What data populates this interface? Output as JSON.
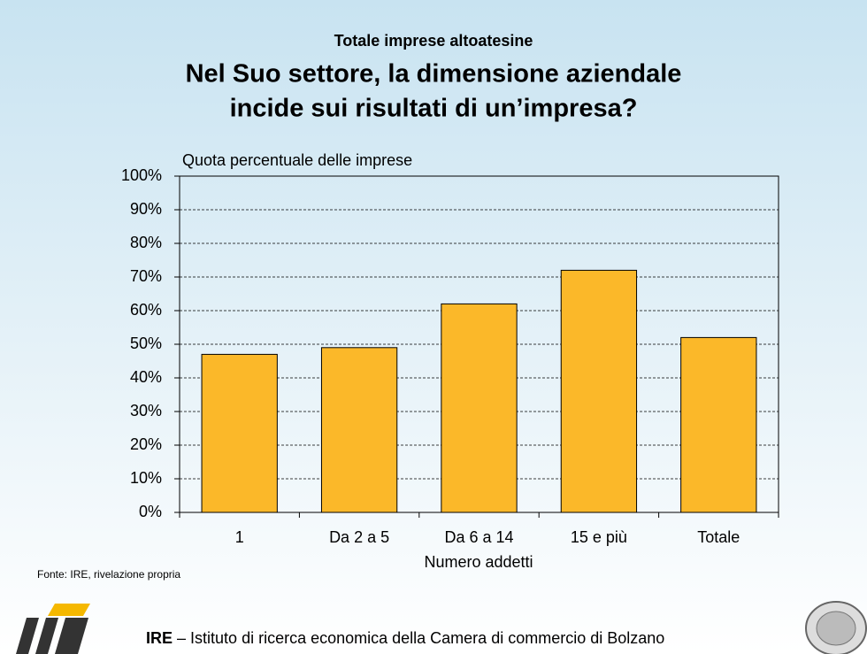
{
  "chart_data": {
    "type": "bar",
    "subtitle": "Totale imprese altoatesine",
    "title": [
      "Nel Suo settore, la dimensione aziendale",
      "incide sui risultati di un’impresa?"
    ],
    "y_label": "Quota percentuale delle imprese",
    "x_label": "Numero addetti",
    "categories": [
      "1",
      "Da 2 a 5",
      "Da 6 a 14",
      "15 e più",
      "Totale"
    ],
    "values": [
      47,
      49,
      62,
      72,
      52
    ],
    "color": "#fbb829",
    "ylim": [
      0,
      100
    ],
    "yticks": [
      {
        "value": 0,
        "label": "0%"
      },
      {
        "value": 10,
        "label": "10%"
      },
      {
        "value": 20,
        "label": "20%"
      },
      {
        "value": 30,
        "label": "30%"
      },
      {
        "value": 40,
        "label": "40%"
      },
      {
        "value": 50,
        "label": "50%"
      },
      {
        "value": 60,
        "label": "60%"
      },
      {
        "value": 70,
        "label": "70%"
      },
      {
        "value": 80,
        "label": "80%"
      },
      {
        "value": 90,
        "label": "90%"
      },
      {
        "value": 100,
        "label": "100%"
      }
    ],
    "grid": true
  },
  "source": "Fonte: IRE, rivelazione propria",
  "footer": {
    "org": "IRE",
    "text": "– Istituto di ricerca economica della Camera di commercio di Bolzano"
  }
}
